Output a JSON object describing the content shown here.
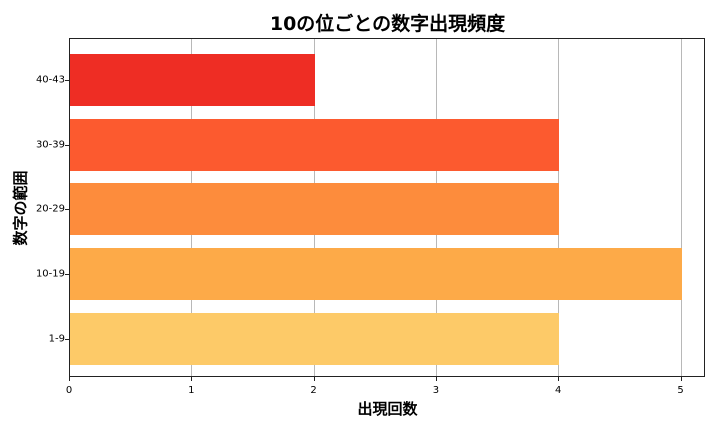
{
  "chart_data": {
    "type": "bar",
    "orientation": "horizontal",
    "title": "10の位ごとの数字出現頻度",
    "xlabel": "出現回数",
    "ylabel": "数字の範囲",
    "categories": [
      "1-9",
      "10-19",
      "20-29",
      "30-39",
      "40-43"
    ],
    "values": [
      4,
      5,
      4,
      4,
      2
    ],
    "colors": [
      "#fdca68",
      "#fdaa48",
      "#fd8c3c",
      "#fc5a2f",
      "#ee2d24"
    ],
    "xlim": [
      0,
      5.2
    ],
    "xticks": [
      "0",
      "1",
      "2",
      "3",
      "4",
      "5"
    ],
    "grid": "x-axis vertical lines",
    "legend": "none"
  }
}
